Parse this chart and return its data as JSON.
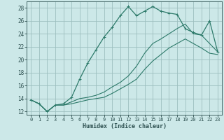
{
  "xlabel": "Humidex (Indice chaleur)",
  "bg_color": "#cce8e8",
  "grid_color": "#9dbfbf",
  "line_color": "#2d7a6a",
  "xlim": [
    -0.5,
    23.5
  ],
  "ylim": [
    11.5,
    29.0
  ],
  "x_ticks": [
    0,
    1,
    2,
    3,
    4,
    5,
    6,
    7,
    8,
    9,
    10,
    11,
    12,
    13,
    14,
    15,
    16,
    17,
    18,
    19,
    20,
    21,
    22,
    23
  ],
  "y_ticks": [
    12,
    14,
    16,
    18,
    20,
    22,
    24,
    26,
    28
  ],
  "series": [
    {
      "x": [
        0,
        1,
        2,
        3,
        4,
        5,
        6,
        7,
        8,
        9,
        10,
        11,
        12,
        13,
        14,
        15,
        16,
        17,
        18,
        19,
        20,
        21,
        22,
        23
      ],
      "y": [
        13.8,
        13.2,
        12.0,
        13.0,
        13.2,
        14.2,
        17.0,
        19.5,
        21.5,
        23.5,
        25.0,
        26.8,
        28.2,
        26.8,
        27.5,
        28.2,
        27.5,
        27.2,
        27.0,
        24.8,
        24.2,
        23.8,
        26.0,
        21.2
      ],
      "marker": true
    },
    {
      "x": [
        0,
        1,
        2,
        3,
        4,
        5,
        6,
        7,
        8,
        9,
        10,
        11,
        12,
        13,
        14,
        15,
        16,
        17,
        18,
        19,
        20,
        21,
        22,
        23
      ],
      "y": [
        13.8,
        13.2,
        12.0,
        13.0,
        13.0,
        13.5,
        14.0,
        14.2,
        14.5,
        15.0,
        15.8,
        16.5,
        17.5,
        19.0,
        21.0,
        22.5,
        23.2,
        24.0,
        24.8,
        25.5,
        24.0,
        23.8,
        22.5,
        21.2
      ],
      "marker": false
    },
    {
      "x": [
        0,
        1,
        2,
        3,
        4,
        5,
        6,
        7,
        8,
        9,
        10,
        11,
        12,
        13,
        14,
        15,
        16,
        17,
        18,
        19,
        20,
        21,
        22,
        23
      ],
      "y": [
        13.8,
        13.2,
        12.0,
        13.0,
        13.0,
        13.2,
        13.5,
        13.8,
        14.0,
        14.2,
        14.8,
        15.5,
        16.2,
        17.0,
        18.5,
        19.8,
        20.8,
        21.8,
        22.5,
        23.2,
        22.5,
        21.8,
        21.0,
        20.8
      ],
      "marker": false
    }
  ]
}
